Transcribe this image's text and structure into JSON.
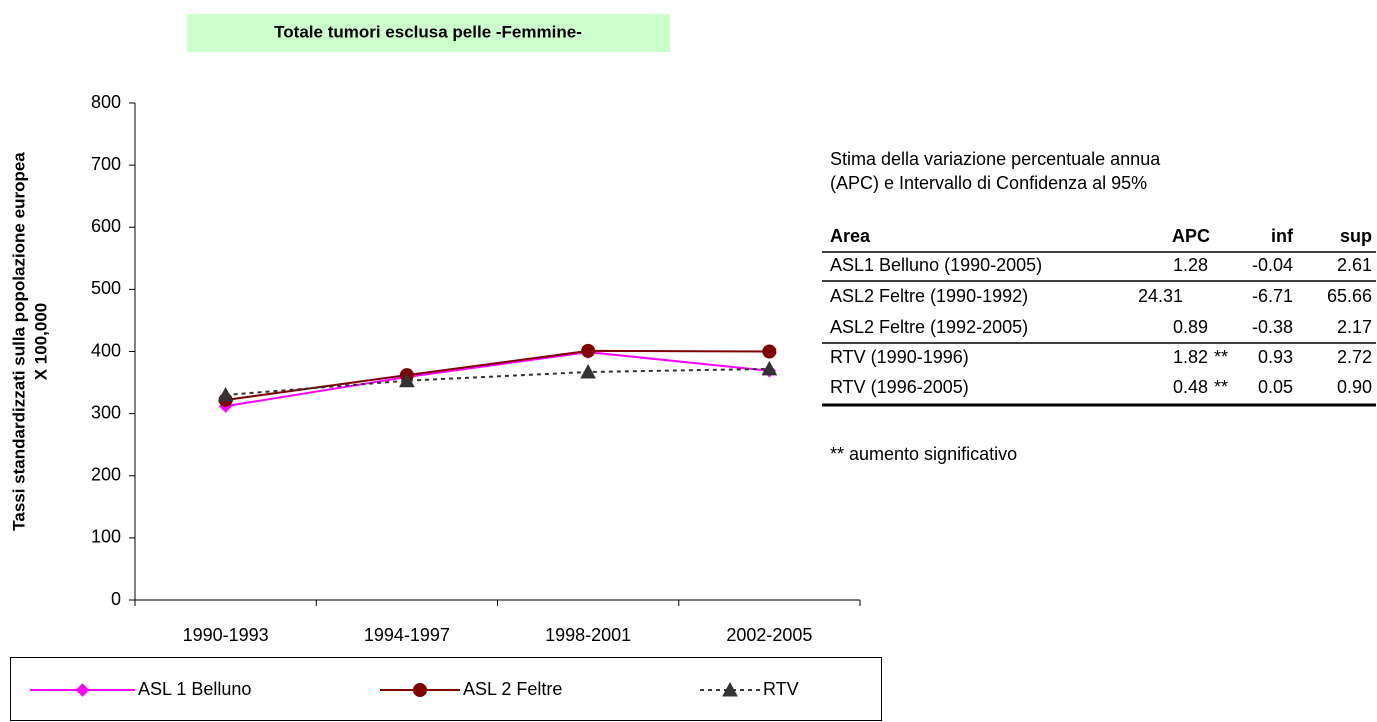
{
  "chart_data": {
    "type": "line",
    "title": "Totale tumori esclusa pelle -Femmine-",
    "y_label": [
      "Tassi standardizzati sulla popolazione europea",
      "X 100,000"
    ],
    "categories": [
      "1990-1993",
      "1994-1997",
      "1998-2001",
      "2002-2005"
    ],
    "series": [
      {
        "name": "ASL 1 Belluno",
        "color": "#ff00ff",
        "marker": "diamond",
        "dashed": false,
        "values": [
          312,
          359,
          399,
          369
        ]
      },
      {
        "name": "ASL 2 Feltre",
        "color": "#800000",
        "marker": "circle",
        "dashed": false,
        "values": [
          322,
          362,
          401,
          400
        ]
      },
      {
        "name": "RTV",
        "color": "#333333",
        "marker": "triangle",
        "dashed": true,
        "values": [
          330,
          353,
          367,
          372
        ]
      }
    ],
    "ylim": [
      0,
      800
    ],
    "yticks": [
      0,
      100,
      200,
      300,
      400,
      500,
      600,
      700,
      800
    ],
    "grid": false
  },
  "info": {
    "lines": [
      "Stima della variazione percentuale annua",
      "(APC) e Intervallo di Confidenza al 95%"
    ],
    "note": "** aumento significativo"
  },
  "table": {
    "header": {
      "area": "Area",
      "apc": "APC",
      "inf": "inf",
      "sup": "sup"
    },
    "rows": [
      {
        "area": "ASL1 Belluno (1990-2005)",
        "apc": "1.28",
        "inf": "-0.04",
        "sup": "2.61"
      },
      {
        "area": "ASL2 Feltre (1990-1992)",
        "apc": "24.31",
        "inf": "-6.71",
        "sup": "65.66"
      },
      {
        "area": "ASL2 Feltre (1992-2005)",
        "apc": "0.89",
        "inf": "-0.38",
        "sup": "2.17"
      },
      {
        "area": "RTV (1990-1996)",
        "apc": "1.82",
        "sig": "**",
        "inf": "0.93",
        "sup": "2.72"
      },
      {
        "area": "RTV (1996-2005)",
        "apc": "0.48",
        "sig": "**",
        "inf": "0.05",
        "sup": "0.90"
      }
    ]
  }
}
